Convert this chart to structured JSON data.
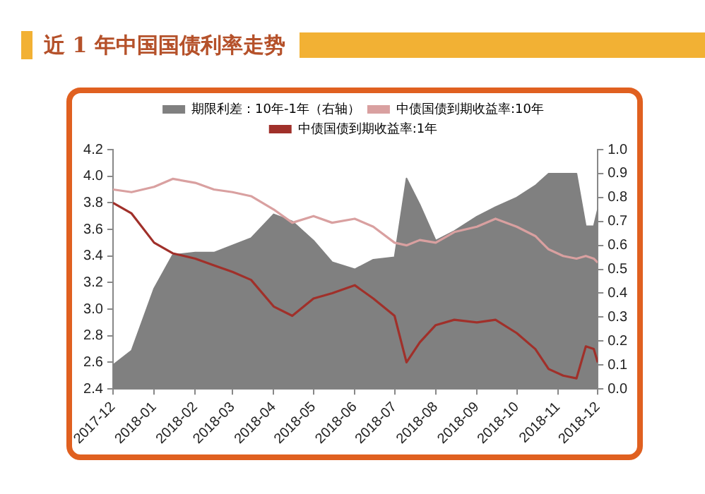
{
  "chart_data": {
    "type": "line",
    "title": "近 1 年中国国债利率走势",
    "x": [
      "2017-12-01",
      "2017-12-15",
      "2018-01-01",
      "2018-01-15",
      "2018-02-01",
      "2018-02-15",
      "2018-03-01",
      "2018-03-15",
      "2018-04-01",
      "2018-04-15",
      "2018-05-01",
      "2018-05-15",
      "2018-06-01",
      "2018-06-15",
      "2018-07-01",
      "2018-07-10",
      "2018-07-20",
      "2018-08-01",
      "2018-08-15",
      "2018-09-01",
      "2018-09-15",
      "2018-10-01",
      "2018-10-15",
      "2018-10-25",
      "2018-11-05",
      "2018-11-15",
      "2018-11-22",
      "2018-11-28",
      "2018-12-01"
    ],
    "series": [
      {
        "name": "期限利差：10年-1年（右轴）",
        "type": "area",
        "axis": "y2",
        "color": "#808080",
        "values": [
          0.1,
          0.16,
          0.42,
          0.56,
          0.57,
          0.57,
          0.6,
          0.63,
          0.73,
          0.7,
          0.62,
          0.53,
          0.5,
          0.54,
          0.55,
          0.88,
          0.77,
          0.62,
          0.66,
          0.72,
          0.76,
          0.8,
          0.85,
          0.9,
          0.9,
          0.9,
          0.68,
          0.68,
          0.75
        ]
      },
      {
        "name": "中债国债到期收益率:10年",
        "type": "line",
        "axis": "y",
        "color": "#d9a0a0",
        "values": [
          3.9,
          3.88,
          3.92,
          3.98,
          3.95,
          3.9,
          3.88,
          3.85,
          3.75,
          3.65,
          3.7,
          3.65,
          3.68,
          3.62,
          3.5,
          3.48,
          3.52,
          3.5,
          3.58,
          3.62,
          3.68,
          3.62,
          3.55,
          3.45,
          3.4,
          3.38,
          3.4,
          3.38,
          3.35
        ]
      },
      {
        "name": "中债国债到期收益率:1年",
        "type": "line",
        "axis": "y",
        "color": "#a0302a",
        "values": [
          3.8,
          3.72,
          3.5,
          3.42,
          3.38,
          3.33,
          3.28,
          3.22,
          3.02,
          2.95,
          3.08,
          3.12,
          3.18,
          3.08,
          2.95,
          2.6,
          2.75,
          2.88,
          2.92,
          2.9,
          2.92,
          2.82,
          2.7,
          2.55,
          2.5,
          2.48,
          2.72,
          2.7,
          2.6
        ]
      }
    ],
    "xlim": [
      "2017-12-01",
      "2018-12-01"
    ],
    "xticks": [
      "2017-12",
      "2018-01",
      "2018-02",
      "2018-03",
      "2018-04",
      "2018-05",
      "2018-06",
      "2018-07",
      "2018-08",
      "2018-09",
      "2018-10",
      "2018-11",
      "2018-12"
    ],
    "ylim": [
      2.4,
      4.2
    ],
    "yticks": [
      2.4,
      2.6,
      2.8,
      {
        "value": 3,
        "label": "3.0"
      },
      3.2,
      3.4,
      3.6,
      3.8,
      {
        "value": 4,
        "label": "4.0"
      },
      4.2
    ],
    "y2lim": [
      0,
      1
    ],
    "y2ticks": [
      {
        "value": 0,
        "label": "0.0"
      },
      0.1,
      0.2,
      0.3,
      0.4,
      0.5,
      0.6,
      0.7,
      0.8,
      0.9,
      {
        "value": 1,
        "label": "1.0"
      }
    ],
    "legend": "top",
    "grid": false,
    "marker": "none",
    "line_style": "solid"
  }
}
